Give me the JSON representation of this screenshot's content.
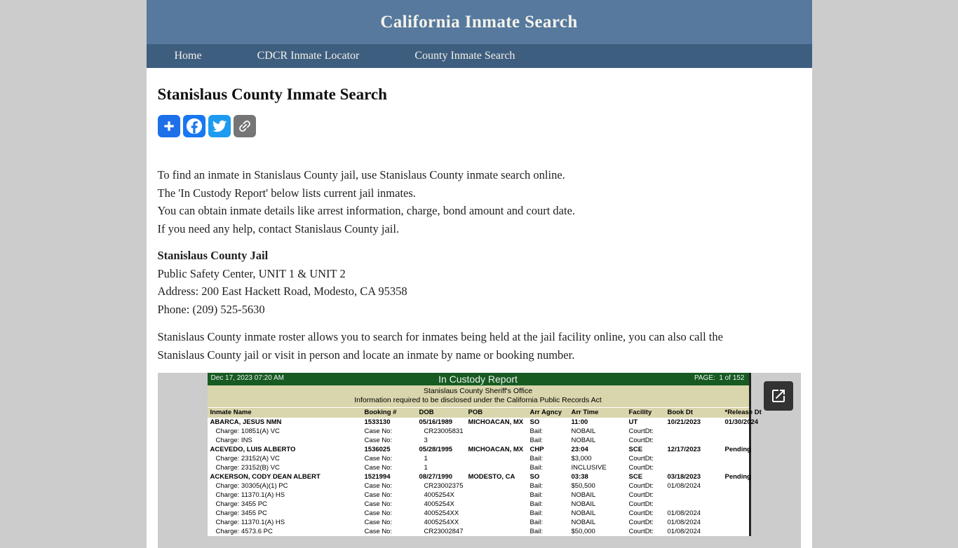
{
  "site": {
    "title": "California Inmate Search"
  },
  "nav": {
    "items": [
      {
        "label": "Home"
      },
      {
        "label": "CDCR Inmate Locator"
      },
      {
        "label": "County Inmate Search"
      }
    ]
  },
  "page": {
    "title": "Stanislaus County Inmate Search",
    "share_buttons": [
      {
        "name": "share",
        "icon": "share-plus-icon",
        "color": "#1d70e8"
      },
      {
        "name": "facebook",
        "icon": "facebook-icon",
        "color": "#1877f2"
      },
      {
        "name": "twitter",
        "icon": "twitter-icon",
        "color": "#1d9bf0"
      },
      {
        "name": "copy-link",
        "icon": "link-icon",
        "color": "#757575"
      }
    ],
    "intro_lines": [
      "To find an inmate in Stanislaus County jail, use Stanislaus County inmate search online.",
      "The 'In Custody Report' below lists current jail inmates.",
      "You can obtain inmate details like arrest information, charge, bond amount and court date.",
      "If you need any help, contact Stanislaus County jail."
    ],
    "jail": {
      "name": "Stanislaus County Jail",
      "line1": "Public Safety Center, UNIT 1 & UNIT 2",
      "address": "Address: 200 East Hackett Road, Modesto, CA 95358",
      "phone": "Phone: (209) 525-5630"
    },
    "roster_paragraph": "Stanislaus County inmate roster allows you to search for inmates being held at the jail facility online, you can also call the Stanislaus County jail or visit in person and locate an inmate by name or booking number."
  },
  "report": {
    "generated": "Dec 17, 2023 07:20 AM",
    "title": "In Custody Report",
    "page_label": "PAGE:",
    "page_info": "1 of 152",
    "org": "Stanislaus County Sheriff's Office",
    "disclosure": "Information required to be disclosed under the California Public Records Act",
    "columns": [
      "Inmate Name",
      "Booking #",
      "DOB",
      "POB",
      "Arr Agncy",
      "Arr Time",
      "Facility",
      "Book Dt",
      "*Release Dt"
    ],
    "labels": {
      "charge": "Charge:",
      "case_no": "Case No:",
      "bail": "Bail:",
      "court_dt": "CourtDt:"
    },
    "inmates": [
      {
        "name": "ABARCA, JESUS NMN",
        "booking": "1533130",
        "dob": "05/16/1989",
        "pob": "MICHOACAN, MX",
        "agency": "SO",
        "arr_time": "11:00",
        "facility": "UT",
        "book_dt": "10/21/2023",
        "release": "01/30/2024",
        "charges": [
          {
            "charge": "10851(A) VC",
            "case": "CR23005831",
            "bail": "NOBAIL",
            "court": ""
          },
          {
            "charge": "INS",
            "case": "3",
            "bail": "NOBAIL",
            "court": ""
          }
        ]
      },
      {
        "name": "ACEVEDO, LUIS ALBERTO",
        "booking": "1536025",
        "dob": "05/28/1995",
        "pob": "MICHOACAN, MX",
        "agency": "CHP",
        "arr_time": "23:04",
        "facility": "SCE",
        "book_dt": "12/17/2023",
        "release": "Pending",
        "charges": [
          {
            "charge": "23152(A) VC",
            "case": "1",
            "bail": "$3,000",
            "court": ""
          },
          {
            "charge": "23152(B) VC",
            "case": "1",
            "bail": "INCLUSIVE",
            "court": ""
          }
        ]
      },
      {
        "name": "ACKERSON, CODY DEAN ALBERT",
        "booking": "1521994",
        "dob": "08/27/1990",
        "pob": "MODESTO, CA",
        "agency": "SO",
        "arr_time": "03:38",
        "facility": "SCE",
        "book_dt": "03/18/2023",
        "release": "Pending",
        "charges": [
          {
            "charge": "30305(A)(1) PC",
            "case": "CR23002375",
            "bail": "$50,500",
            "court": "01/08/2024"
          },
          {
            "charge": "11370.1(A) HS",
            "case": "4005254X",
            "bail": "NOBAIL",
            "court": ""
          },
          {
            "charge": "3455 PC",
            "case": "4005254X",
            "bail": "NOBAIL",
            "court": ""
          },
          {
            "charge": "3455 PC",
            "case": "4005254XX",
            "bail": "NOBAIL",
            "court": "01/08/2024"
          },
          {
            "charge": "11370.1(A) HS",
            "case": "4005254XX",
            "bail": "NOBAIL",
            "court": "01/08/2024"
          },
          {
            "charge": "4573.6 PC",
            "case": "CR23002847",
            "bail": "$50,000",
            "court": "01/08/2024"
          }
        ]
      }
    ]
  },
  "colors": {
    "header_bg": "#56799d",
    "nav_bg": "#3e5e80",
    "report_green": "#175a22",
    "report_tan": "#d9d6ad",
    "frame_gray": "#cccccc"
  }
}
